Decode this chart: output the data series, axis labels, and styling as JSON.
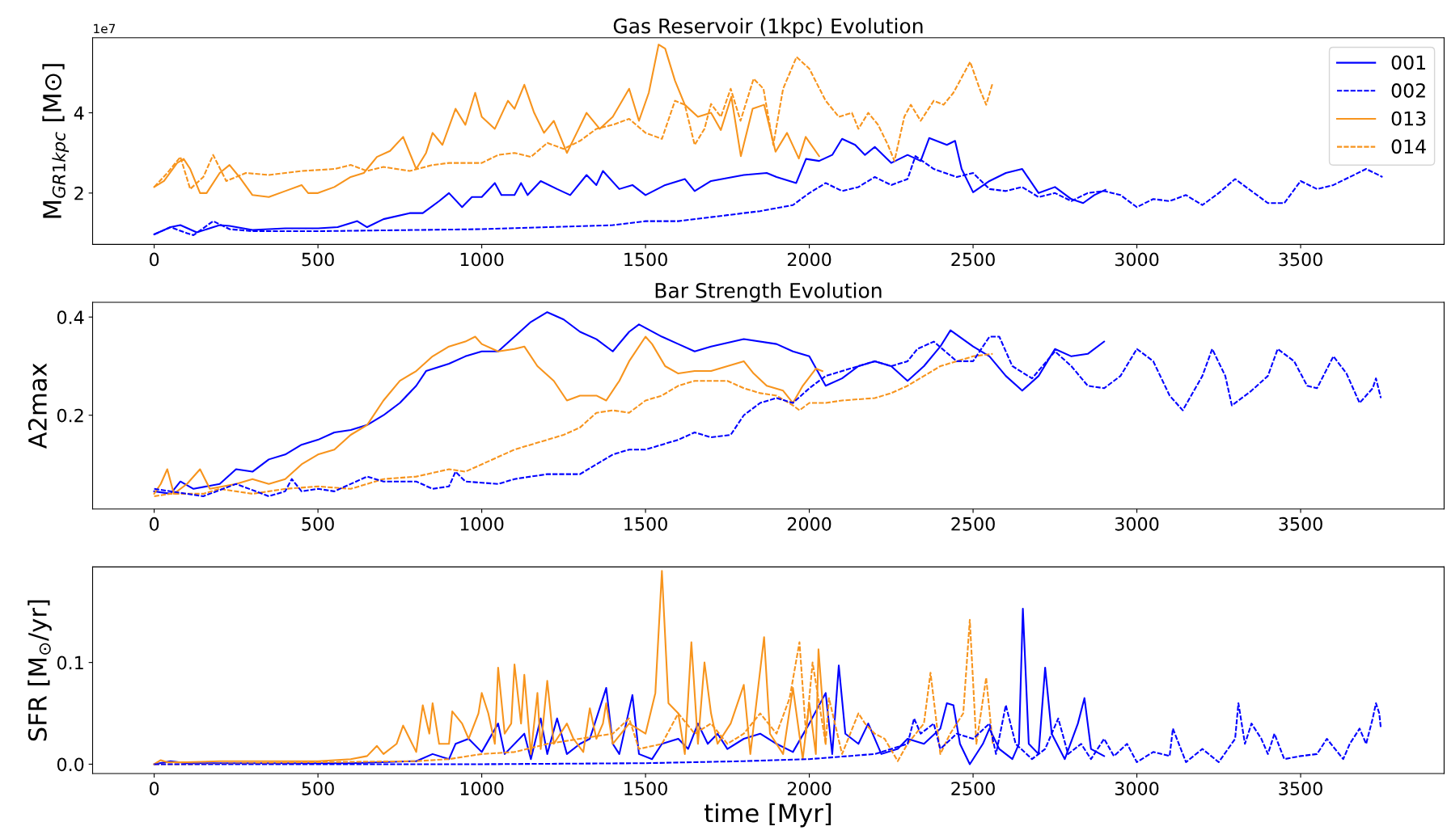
{
  "chart_data": [
    {
      "type": "line",
      "title": "Gas Reservoir (1kpc) Evolution",
      "ylabel": "M$_{GR1kpc}$ [M⊙]",
      "annotations": [
        "1e7"
      ],
      "xlim": [
        -188,
        3938
      ],
      "xticks": [
        0,
        500,
        1000,
        1500,
        2000,
        2500,
        3000,
        3500
      ],
      "ylim": [
        0.72,
        5.87
      ],
      "yticks": [
        2,
        4
      ],
      "legend": "top right",
      "series": [
        {
          "name": "001",
          "color": "#0000ff",
          "line_style": "solid",
          "x": [
            0,
            50,
            80,
            130,
            200,
            230,
            300,
            400,
            500,
            560,
            620,
            650,
            700,
            780,
            820,
            870,
            900,
            940,
            970,
            1000,
            1040,
            1060,
            1100,
            1120,
            1140,
            1180,
            1230,
            1270,
            1320,
            1350,
            1370,
            1420,
            1460,
            1500,
            1560,
            1620,
            1650,
            1700,
            1800,
            1870,
            1900,
            1960,
            1990,
            2030,
            2070,
            2100,
            2140,
            2170,
            2200,
            2250,
            2300,
            2340,
            2366,
            2420,
            2445,
            2465,
            2500,
            2550,
            2600,
            2650,
            2700,
            2750,
            2800,
            2836,
            2870,
            2904
          ],
          "values": [
            0.97,
            1.15,
            1.2,
            1.02,
            1.2,
            1.18,
            1.08,
            1.12,
            1.12,
            1.15,
            1.3,
            1.15,
            1.35,
            1.5,
            1.5,
            1.8,
            2.0,
            1.65,
            1.9,
            1.9,
            2.25,
            1.95,
            1.95,
            2.25,
            1.95,
            2.3,
            2.1,
            1.95,
            2.45,
            2.2,
            2.55,
            2.1,
            2.2,
            1.95,
            2.2,
            2.35,
            2.05,
            2.3,
            2.45,
            2.5,
            2.4,
            2.25,
            2.85,
            2.8,
            2.95,
            3.35,
            3.2,
            2.95,
            3.15,
            2.75,
            2.95,
            2.8,
            3.37,
            3.2,
            3.3,
            2.6,
            2.02,
            2.3,
            2.5,
            2.6,
            2.0,
            2.15,
            1.85,
            1.75,
            1.95,
            2.08
          ]
        },
        {
          "name": "002",
          "color": "#0000ff",
          "line_style": "dashed",
          "x": [
            0,
            50,
            100,
            120,
            180,
            230,
            300,
            500,
            800,
            1000,
            1200,
            1400,
            1500,
            1600,
            1700,
            1750,
            1850,
            1950,
            2000,
            2050,
            2100,
            2150,
            2200,
            2250,
            2300,
            2324,
            2380,
            2450,
            2500,
            2550,
            2600,
            2650,
            2700,
            2750,
            2800,
            2850,
            2900,
            2950,
            3000,
            3050,
            3100,
            3150,
            3200,
            3250,
            3300,
            3350,
            3400,
            3450,
            3500,
            3550,
            3600,
            3650,
            3700,
            3750
          ],
          "values": [
            0.97,
            1.15,
            1.0,
            0.95,
            1.3,
            1.1,
            1.05,
            1.05,
            1.08,
            1.1,
            1.15,
            1.2,
            1.3,
            1.3,
            1.4,
            1.45,
            1.55,
            1.7,
            2.0,
            2.25,
            2.05,
            2.15,
            2.4,
            2.2,
            2.35,
            2.92,
            2.6,
            2.4,
            2.5,
            2.1,
            2.05,
            2.15,
            1.9,
            2.0,
            1.8,
            2.0,
            2.05,
            1.95,
            1.65,
            1.85,
            1.8,
            1.95,
            1.7,
            2.0,
            2.35,
            2.05,
            1.75,
            1.75,
            2.3,
            2.1,
            2.2,
            2.4,
            2.6,
            2.4
          ]
        },
        {
          "name": "013",
          "color": "#f7941d",
          "line_style": "solid",
          "x": [
            0,
            30,
            70,
            90,
            110,
            140,
            160,
            200,
            230,
            260,
            300,
            350,
            400,
            450,
            470,
            500,
            550,
            600,
            640,
            680,
            720,
            760,
            800,
            830,
            850,
            880,
            920,
            950,
            980,
            1000,
            1040,
            1080,
            1100,
            1130,
            1160,
            1190,
            1220,
            1260,
            1290,
            1320,
            1360,
            1400,
            1450,
            1480,
            1510,
            1540,
            1560,
            1590,
            1620,
            1660,
            1700,
            1730,
            1762,
            1791,
            1827,
            1862,
            1897,
            1932,
            1968,
            1989,
            2030
          ],
          "values": [
            2.15,
            2.3,
            2.75,
            2.85,
            2.6,
            2.0,
            2.0,
            2.5,
            2.7,
            2.4,
            1.95,
            1.9,
            2.05,
            2.2,
            2.0,
            2.0,
            2.15,
            2.4,
            2.5,
            2.9,
            3.05,
            3.4,
            2.6,
            3.0,
            3.5,
            3.2,
            4.1,
            3.7,
            4.5,
            3.9,
            3.6,
            4.3,
            4.1,
            4.7,
            4.0,
            3.5,
            3.8,
            3.0,
            3.5,
            4.0,
            3.6,
            3.9,
            4.6,
            3.8,
            4.5,
            5.7,
            5.6,
            4.8,
            4.2,
            3.9,
            4.0,
            3.57,
            4.4,
            2.92,
            4.1,
            4.2,
            3.03,
            3.5,
            2.86,
            3.4,
            2.92
          ]
        },
        {
          "name": "014",
          "color": "#f7941d",
          "line_style": "dashed",
          "x": [
            0,
            40,
            80,
            110,
            150,
            180,
            220,
            280,
            350,
            450,
            550,
            600,
            650,
            700,
            780,
            850,
            900,
            1000,
            1050,
            1100,
            1150,
            1200,
            1250,
            1300,
            1350,
            1400,
            1450,
            1500,
            1550,
            1590,
            1620,
            1650,
            1680,
            1700,
            1730,
            1760,
            1790,
            1830,
            1860,
            1890,
            1920,
            1961,
            2000,
            2050,
            2090,
            2130,
            2150,
            2180,
            2210,
            2240,
            2260,
            2290,
            2310,
            2340,
            2380,
            2410,
            2440,
            2491,
            2520,
            2540,
            2560
          ],
          "values": [
            2.15,
            2.5,
            2.9,
            2.1,
            2.4,
            2.95,
            2.3,
            2.5,
            2.45,
            2.55,
            2.6,
            2.7,
            2.55,
            2.65,
            2.55,
            2.7,
            2.75,
            2.75,
            2.95,
            3.0,
            2.9,
            3.25,
            3.1,
            3.3,
            3.6,
            3.7,
            3.85,
            3.5,
            3.35,
            4.3,
            4.2,
            3.2,
            3.6,
            4.22,
            3.9,
            4.6,
            3.8,
            4.85,
            4.6,
            3.2,
            4.6,
            5.39,
            5.1,
            4.3,
            3.9,
            4.0,
            3.6,
            4.0,
            3.7,
            3.2,
            2.8,
            3.9,
            4.2,
            3.8,
            4.3,
            4.2,
            4.5,
            5.27,
            4.6,
            4.2,
            4.75
          ]
        }
      ]
    },
    {
      "type": "line",
      "title": "Bar Strength Evolution",
      "ylabel": "A2max",
      "xlim": [
        -188,
        3938
      ],
      "xticks": [
        0,
        500,
        1000,
        1500,
        2000,
        2500,
        3000,
        3500
      ],
      "ylim": [
        0.009,
        0.43
      ],
      "yticks": [
        0.2,
        0.4
      ],
      "series": [
        {
          "color": "#0000ff",
          "line_style": "solid",
          "x": [
            0,
            50,
            80,
            120,
            200,
            250,
            300,
            350,
            400,
            450,
            500,
            550,
            600,
            650,
            700,
            750,
            800,
            830,
            900,
            950,
            1000,
            1050,
            1100,
            1150,
            1200,
            1250,
            1300,
            1350,
            1400,
            1450,
            1480,
            1550,
            1600,
            1650,
            1700,
            1800,
            1900,
            1950,
            2000,
            2050,
            2100,
            2150,
            2200,
            2250,
            2300,
            2350,
            2400,
            2431,
            2500,
            2550,
            2600,
            2650,
            2700,
            2750,
            2800,
            2850,
            2900
          ],
          "values": [
            0.045,
            0.04,
            0.065,
            0.05,
            0.06,
            0.09,
            0.085,
            0.11,
            0.12,
            0.14,
            0.15,
            0.165,
            0.17,
            0.18,
            0.2,
            0.225,
            0.26,
            0.29,
            0.305,
            0.32,
            0.33,
            0.33,
            0.36,
            0.39,
            0.41,
            0.395,
            0.37,
            0.355,
            0.33,
            0.37,
            0.385,
            0.36,
            0.345,
            0.33,
            0.34,
            0.355,
            0.345,
            0.33,
            0.32,
            0.26,
            0.275,
            0.3,
            0.31,
            0.3,
            0.27,
            0.3,
            0.34,
            0.373,
            0.34,
            0.32,
            0.28,
            0.25,
            0.28,
            0.335,
            0.32,
            0.325,
            0.35
          ]
        },
        {
          "color": "#0000ff",
          "line_style": "dashed",
          "x": [
            0,
            100,
            150,
            250,
            350,
            400,
            420,
            450,
            500,
            550,
            650,
            700,
            800,
            850,
            900,
            920,
            950,
            1050,
            1100,
            1200,
            1300,
            1400,
            1450,
            1500,
            1550,
            1600,
            1650,
            1700,
            1760,
            1800,
            1850,
            1900,
            1950,
            2000,
            2050,
            2100,
            2150,
            2200,
            2250,
            2300,
            2330,
            2380,
            2450,
            2500,
            2550,
            2580,
            2620,
            2680,
            2750,
            2800,
            2850,
            2900,
            2950,
            3000,
            3050,
            3100,
            3140,
            3200,
            3230,
            3270,
            3290,
            3350,
            3400,
            3430,
            3480,
            3520,
            3550,
            3600,
            3640,
            3680,
            3720,
            3730,
            3745
          ],
          "values": [
            0.05,
            0.04,
            0.035,
            0.06,
            0.035,
            0.045,
            0.07,
            0.045,
            0.05,
            0.045,
            0.075,
            0.065,
            0.065,
            0.05,
            0.055,
            0.085,
            0.065,
            0.06,
            0.07,
            0.08,
            0.08,
            0.12,
            0.13,
            0.13,
            0.14,
            0.15,
            0.165,
            0.155,
            0.16,
            0.2,
            0.225,
            0.235,
            0.225,
            0.255,
            0.28,
            0.29,
            0.3,
            0.31,
            0.3,
            0.31,
            0.335,
            0.35,
            0.31,
            0.31,
            0.36,
            0.36,
            0.3,
            0.275,
            0.33,
            0.3,
            0.26,
            0.255,
            0.28,
            0.335,
            0.31,
            0.24,
            0.21,
            0.28,
            0.335,
            0.28,
            0.22,
            0.25,
            0.28,
            0.335,
            0.31,
            0.26,
            0.255,
            0.32,
            0.285,
            0.225,
            0.255,
            0.275,
            0.235
          ]
        },
        {
          "color": "#f7941d",
          "line_style": "solid",
          "x": [
            0,
            20,
            40,
            60,
            100,
            140,
            170,
            250,
            300,
            350,
            400,
            450,
            500,
            550,
            600,
            650,
            700,
            750,
            800,
            850,
            900,
            950,
            980,
            1000,
            1050,
            1100,
            1130,
            1170,
            1220,
            1260,
            1300,
            1350,
            1380,
            1420,
            1450,
            1500,
            1520,
            1560,
            1600,
            1650,
            1700,
            1750,
            1800,
            1830,
            1870,
            1920,
            1950,
            1980,
            2020,
            2040
          ],
          "values": [
            0.04,
            0.06,
            0.09,
            0.04,
            0.06,
            0.09,
            0.05,
            0.06,
            0.07,
            0.06,
            0.07,
            0.1,
            0.12,
            0.13,
            0.16,
            0.18,
            0.23,
            0.27,
            0.29,
            0.32,
            0.34,
            0.35,
            0.36,
            0.345,
            0.33,
            0.335,
            0.34,
            0.3,
            0.27,
            0.23,
            0.24,
            0.24,
            0.23,
            0.27,
            0.31,
            0.36,
            0.345,
            0.3,
            0.285,
            0.29,
            0.29,
            0.3,
            0.31,
            0.285,
            0.26,
            0.25,
            0.225,
            0.26,
            0.295,
            0.29
          ]
        },
        {
          "color": "#f7941d",
          "line_style": "dashed",
          "x": [
            0,
            50,
            150,
            200,
            300,
            400,
            500,
            600,
            700,
            800,
            900,
            950,
            1000,
            1100,
            1200,
            1250,
            1300,
            1350,
            1400,
            1450,
            1500,
            1550,
            1600,
            1650,
            1700,
            1750,
            1800,
            1850,
            1900,
            1950,
            1970,
            2000,
            2050,
            2100,
            2200,
            2250,
            2300,
            2350,
            2400,
            2450,
            2500,
            2560
          ],
          "values": [
            0.035,
            0.04,
            0.04,
            0.05,
            0.04,
            0.05,
            0.055,
            0.05,
            0.07,
            0.075,
            0.09,
            0.085,
            0.1,
            0.13,
            0.15,
            0.16,
            0.175,
            0.205,
            0.21,
            0.205,
            0.23,
            0.24,
            0.26,
            0.27,
            0.27,
            0.27,
            0.255,
            0.245,
            0.24,
            0.22,
            0.21,
            0.225,
            0.225,
            0.23,
            0.235,
            0.245,
            0.26,
            0.28,
            0.3,
            0.31,
            0.32,
            0.325
          ]
        }
      ]
    },
    {
      "type": "line",
      "ylabel": "SFR [M$_{⊙}$/yr]",
      "xlabel": "time [Myr]",
      "xlim": [
        -188,
        3938
      ],
      "xticks": [
        0,
        500,
        1000,
        1500,
        2000,
        2500,
        3000,
        3500
      ],
      "ylim": [
        -0.0092,
        0.194
      ],
      "yticks": [
        {
          "value": 0,
          "label": "0.0"
        },
        0.1
      ],
      "series": [
        {
          "color": "#0000ff",
          "line_style": "solid",
          "x": [
            0,
            50,
            100,
            600,
            800,
            850,
            900,
            920,
            960,
            1000,
            1050,
            1070,
            1130,
            1150,
            1180,
            1200,
            1230,
            1260,
            1300,
            1330,
            1380,
            1400,
            1420,
            1460,
            1480,
            1520,
            1550,
            1600,
            1630,
            1660,
            1690,
            1720,
            1750,
            1800,
            1850,
            1900,
            1950,
            2000,
            2050,
            2070,
            2090,
            2110,
            2150,
            2180,
            2220,
            2270,
            2300,
            2350,
            2400,
            2420,
            2440,
            2460,
            2490,
            2530,
            2550,
            2580,
            2620,
            2640,
            2652,
            2670,
            2700,
            2720,
            2740,
            2780,
            2820,
            2840,
            2860,
            2900
          ],
          "values": [
            0,
            0.003,
            0.001,
            0.001,
            0.003,
            0.01,
            0.005,
            0.02,
            0.025,
            0.012,
            0.04,
            0.01,
            0.03,
            0.005,
            0.045,
            0.01,
            0.045,
            0.01,
            0.02,
            0.025,
            0.075,
            0.02,
            0.01,
            0.068,
            0.01,
            0.005,
            0.02,
            0.025,
            0.015,
            0.04,
            0.02,
            0.03,
            0.015,
            0.025,
            0.03,
            0.02,
            0.012,
            0.04,
            0.07,
            0.01,
            0.097,
            0.03,
            0.02,
            0.04,
            0.01,
            0.015,
            0.025,
            0.02,
            0.035,
            0.06,
            0.058,
            0.02,
            0.0,
            0.02,
            0.035,
            0.015,
            0.005,
            0.02,
            0.153,
            0.02,
            0.01,
            0.095,
            0.03,
            0.005,
            0.04,
            0.065,
            0.015,
            0.008
          ]
        },
        {
          "color": "#0000ff",
          "line_style": "dashed",
          "x": [
            0,
            1000,
            1500,
            1800,
            2000,
            2200,
            2300,
            2320,
            2340,
            2380,
            2400,
            2450,
            2500,
            2550,
            2570,
            2600,
            2630,
            2680,
            2720,
            2760,
            2790,
            2830,
            2860,
            2900,
            2930,
            2970,
            3000,
            3050,
            3100,
            3110,
            3150,
            3200,
            3250,
            3300,
            3310,
            3330,
            3350,
            3380,
            3400,
            3420,
            3450,
            3500,
            3550,
            3580,
            3630,
            3650,
            3680,
            3700,
            3720,
            3730,
            3740,
            3745
          ],
          "values": [
            0,
            0,
            0.001,
            0.003,
            0.005,
            0.01,
            0.02,
            0.045,
            0.03,
            0.04,
            0.015,
            0.03,
            0.025,
            0.04,
            0.01,
            0.058,
            0.02,
            0.005,
            0.015,
            0.045,
            0.01,
            0.02,
            0.005,
            0.025,
            0.008,
            0.02,
            0.002,
            0.012,
            0.008,
            0.035,
            0.002,
            0.015,
            0.002,
            0.025,
            0.06,
            0.02,
            0.04,
            0.025,
            0.01,
            0.03,
            0.005,
            0.008,
            0.01,
            0.025,
            0.005,
            0.02,
            0.035,
            0.02,
            0.045,
            0.06,
            0.05,
            0.035
          ]
        },
        {
          "color": "#f7941d",
          "line_style": "solid",
          "x": [
            0,
            20,
            40,
            100,
            200,
            300,
            400,
            500,
            600,
            650,
            680,
            700,
            740,
            760,
            780,
            800,
            820,
            840,
            850,
            870,
            900,
            910,
            940,
            960,
            990,
            1000,
            1020,
            1040,
            1050,
            1070,
            1090,
            1100,
            1120,
            1130,
            1150,
            1170,
            1180,
            1200,
            1220,
            1260,
            1280,
            1310,
            1330,
            1350,
            1370,
            1380,
            1400,
            1450,
            1500,
            1530,
            1550,
            1570,
            1600,
            1620,
            1640,
            1660,
            1680,
            1700,
            1720,
            1760,
            1800,
            1820,
            1862,
            1880,
            1920,
            1950,
            1980,
            2000,
            2020,
            2028,
            2050
          ],
          "values": [
            0,
            0.004,
            0.002,
            0.002,
            0.003,
            0.003,
            0.003,
            0.003,
            0.005,
            0.008,
            0.018,
            0.01,
            0.02,
            0.038,
            0.025,
            0.012,
            0.058,
            0.03,
            0.06,
            0.02,
            0.02,
            0.052,
            0.04,
            0.025,
            0.05,
            0.07,
            0.05,
            0.02,
            0.095,
            0.03,
            0.04,
            0.098,
            0.04,
            0.088,
            0.01,
            0.07,
            0.015,
            0.082,
            0.02,
            0.04,
            0.025,
            0.012,
            0.055,
            0.025,
            0.04,
            0.06,
            0.02,
            0.04,
            0.03,
            0.07,
            0.19,
            0.06,
            0.05,
            0.01,
            0.12,
            0.02,
            0.1,
            0.05,
            0.02,
            0.04,
            0.078,
            0.01,
            0.125,
            0.03,
            0.01,
            0.075,
            0.005,
            0.06,
            0.01,
            0.113,
            0.02
          ]
        },
        {
          "color": "#f7941d",
          "line_style": "dashed",
          "x": [
            0,
            100,
            500,
            800,
            900,
            1000,
            1100,
            1200,
            1300,
            1400,
            1450,
            1480,
            1550,
            1600,
            1650,
            1700,
            1750,
            1800,
            1850,
            1900,
            1940,
            1970,
            1990,
            2010,
            2050,
            2060,
            2100,
            2150,
            2170,
            2200,
            2230,
            2270,
            2300,
            2350,
            2370,
            2400,
            2430,
            2470,
            2490,
            2510,
            2540,
            2560
          ],
          "values": [
            0,
            0,
            0.002,
            0.003,
            0.005,
            0.01,
            0.012,
            0.02,
            0.025,
            0.03,
            0.045,
            0.015,
            0.02,
            0.05,
            0.03,
            0.04,
            0.02,
            0.03,
            0.05,
            0.03,
            0.065,
            0.12,
            0.03,
            0.1,
            0.02,
            0.065,
            0.01,
            0.05,
            0.04,
            0.03,
            0.025,
            0.003,
            0.02,
            0.04,
            0.09,
            0.01,
            0.03,
            0.05,
            0.142,
            0.02,
            0.085,
            0.02
          ]
        }
      ]
    }
  ]
}
